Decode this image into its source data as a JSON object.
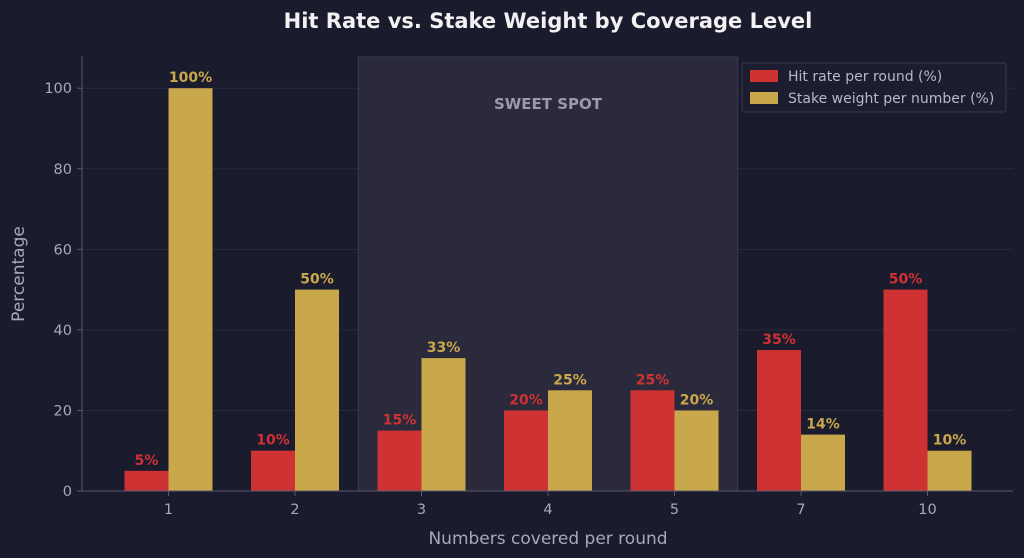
{
  "chart_data": {
    "type": "bar",
    "title": "Hit Rate vs. Stake Weight by Coverage Level",
    "xlabel": "Numbers covered per round",
    "ylabel": "Percentage",
    "categories": [
      "1",
      "2",
      "3",
      "4",
      "5",
      "7",
      "10"
    ],
    "ylim": [
      0,
      108
    ],
    "yticks": [
      0,
      20,
      40,
      60,
      80,
      100
    ],
    "grid": true,
    "legend_position": "top-right",
    "series": [
      {
        "name": "Hit rate per round (%)",
        "values": [
          5,
          10,
          15,
          20,
          25,
          35,
          50
        ],
        "labels": [
          "5%",
          "10%",
          "15%",
          "20%",
          "25%",
          "35%",
          "50%"
        ],
        "color": "#cf3232"
      },
      {
        "name": "Stake weight per number (%)",
        "values": [
          100,
          50,
          33,
          25,
          20,
          14,
          10
        ],
        "labels": [
          "100%",
          "50%",
          "33%",
          "25%",
          "20%",
          "14%",
          "10%"
        ],
        "color": "#c8a84b"
      }
    ],
    "highlight_band": {
      "label": "SWEET SPOT",
      "from_category": "3",
      "to_category": "5"
    },
    "colors": {
      "background": "#1b1b2e",
      "band": "#2a2a3c",
      "grid": "#2b2b3f",
      "axis": "#5a5a6e",
      "text": "#a8a8b8"
    }
  }
}
